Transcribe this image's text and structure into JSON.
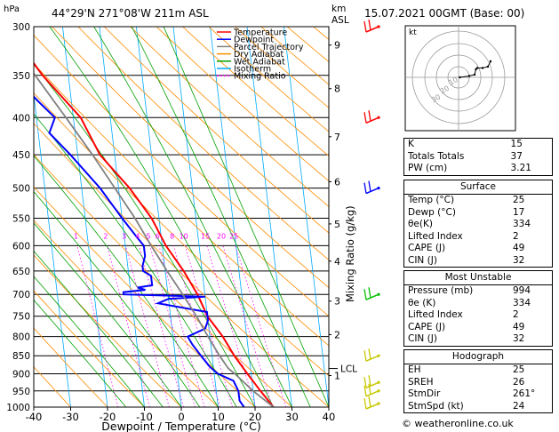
{
  "header": {
    "location": "44°29'N  271°08'W  211m  ASL",
    "datetime": "15.07.2021  00GMT  (Base: 00)"
  },
  "credit": "© weatheronline.co.uk",
  "chart_data": {
    "type": "line",
    "kind": "skew-T log-P thermodynamic diagram",
    "xlabel": "Dewpoint / Temperature (°C)",
    "ylabel_left": "hPa",
    "ylabel_right_top": "km ASL",
    "ylabel_right": "Mixing Ratio (g/kg)",
    "x_ticks": [
      -40,
      -30,
      -20,
      -10,
      0,
      10,
      20,
      30,
      40
    ],
    "xlim": [
      -40,
      40
    ],
    "p_ticks": [
      300,
      350,
      400,
      450,
      500,
      550,
      600,
      650,
      700,
      750,
      800,
      850,
      900,
      950,
      1000
    ],
    "ylim": [
      1000,
      300
    ],
    "y_scale": "log",
    "skew": "isotherms slanted to the right",
    "km_ticks": [
      {
        "label": "9",
        "p": 318
      },
      {
        "label": "8",
        "p": 365
      },
      {
        "label": "7",
        "p": 425
      },
      {
        "label": "6",
        "p": 490
      },
      {
        "label": "5",
        "p": 560
      },
      {
        "label": "4",
        "p": 630
      },
      {
        "label": "3",
        "p": 715
      },
      {
        "label": "2",
        "p": 795
      },
      {
        "label": "1",
        "p": 905
      }
    ],
    "lcl": {
      "label": "LCL",
      "p": 885
    },
    "mixing_ratio_labels": [
      "1",
      "2",
      "3",
      "4",
      "5",
      "6",
      "8",
      "10",
      "15",
      "20",
      "25"
    ],
    "mixing_ratio_values": [
      1,
      2,
      3,
      4,
      5,
      6,
      8,
      10,
      15,
      20,
      25
    ],
    "mixing_ratio_label_p": 590,
    "legend": [
      "Temperature",
      "Dewpoint",
      "Parcel Trajectory",
      "Dry Adiabat",
      "Wet Adiabat",
      "Isotherm",
      "Mixing Ratio"
    ],
    "legend_position": "top-left",
    "colors": {
      "temperature": "#ff0000",
      "dewpoint": "#0000ff",
      "parcel": "#808080",
      "dry_adiabat": "#ff8c00",
      "wet_adiabat": "#00a000",
      "isotherm": "#00aaff",
      "mixing_ratio": "#ff00ff",
      "wind_high": "#ff0000",
      "wind_mid": "#0000ff",
      "wind_low_mid": "#00c000",
      "wind_low": "#c8c800"
    },
    "isotherms": [
      -110,
      -100,
      -90,
      -80,
      -70,
      -60,
      -50,
      -40,
      -30,
      -20,
      -10,
      0,
      10,
      20,
      30,
      40
    ],
    "dry_adiabats_theta_c": [
      -30,
      -20,
      -10,
      0,
      10,
      20,
      30,
      40,
      50,
      60,
      70,
      80,
      90,
      100,
      110,
      120,
      130,
      140,
      150,
      160,
      170,
      180,
      190,
      200
    ],
    "wet_adiabats_c": [
      -15,
      -10,
      -5,
      0,
      5,
      10,
      15,
      20,
      25,
      30,
      35,
      40
    ],
    "series": [
      {
        "name": "Temperature",
        "p": [
          1000,
          950,
          900,
          850,
          800,
          750,
          700,
          650,
          600,
          550,
          500,
          450,
          400,
          350,
          300
        ],
        "t": [
          25,
          22,
          19,
          16,
          13.5,
          10,
          8,
          5,
          1,
          -2,
          -7,
          -14,
          -18,
          -27,
          -35
        ]
      },
      {
        "name": "Dewpoint",
        "p": [
          1000,
          980,
          950,
          920,
          900,
          880,
          850,
          820,
          800,
          780,
          760,
          740,
          720,
          710,
          705,
          700,
          695,
          690,
          685,
          680,
          660,
          650,
          640,
          620,
          600,
          580,
          550,
          500,
          450,
          420,
          400,
          380,
          350,
          300
        ],
        "t": [
          17,
          16,
          16,
          15,
          11,
          9,
          7,
          5,
          4,
          9,
          10,
          10,
          -3,
          0,
          10,
          -12,
          -12,
          -6,
          -8,
          -4,
          -4,
          -6,
          -6,
          -5,
          -5,
          -7,
          -10,
          -15,
          -22,
          -27,
          -25,
          -29,
          -35,
          -43
        ]
      },
      {
        "name": "Parcel Trajectory",
        "p": [
          1000,
          950,
          900,
          885,
          850,
          800,
          750,
          700,
          650,
          600,
          550,
          500,
          450,
          400,
          350,
          300
        ],
        "t": [
          25,
          20,
          15.6,
          14,
          12,
          9.5,
          7,
          4,
          0.5,
          -3,
          -6.5,
          -11,
          -16,
          -22,
          -29,
          -38
        ]
      }
    ],
    "wind_barbs": [
      {
        "p": 300,
        "color": "wind_high"
      },
      {
        "p": 400,
        "color": "wind_high"
      },
      {
        "p": 500,
        "color": "wind_mid"
      },
      {
        "p": 700,
        "color": "wind_low_mid"
      },
      {
        "p": 850,
        "color": "wind_low"
      },
      {
        "p": 925,
        "color": "wind_low"
      },
      {
        "p": 950,
        "color": "wind_low"
      },
      {
        "p": 1000,
        "color": "wind_low"
      }
    ],
    "hodograph": {
      "label": "kt",
      "ring_labels": [
        "10",
        "20",
        "30"
      ],
      "trace": [
        [
          1,
          0
        ],
        [
          8,
          1
        ],
        [
          12,
          2
        ],
        [
          13,
          6
        ],
        [
          14,
          7
        ],
        [
          18,
          7
        ],
        [
          22,
          8
        ],
        [
          24,
          12
        ]
      ]
    }
  },
  "indices": {
    "rows": [
      {
        "label": "K",
        "value": "15"
      },
      {
        "label": "Totals Totals",
        "value": "37"
      },
      {
        "label": "PW (cm)",
        "value": "3.21"
      }
    ]
  },
  "surface": {
    "title": "Surface",
    "rows": [
      {
        "label": "Temp (°C)",
        "value": "25"
      },
      {
        "label": "Dewp (°C)",
        "value": "17"
      },
      {
        "label": "θe(K)",
        "value": "334"
      },
      {
        "label": "Lifted Index",
        "value": "2"
      },
      {
        "label": "CAPE (J)",
        "value": "49"
      },
      {
        "label": "CIN (J)",
        "value": "32"
      }
    ]
  },
  "most_unstable": {
    "title": "Most Unstable",
    "rows": [
      {
        "label": "Pressure (mb)",
        "value": "994"
      },
      {
        "label": "θe (K)",
        "value": "334"
      },
      {
        "label": "Lifted Index",
        "value": "2"
      },
      {
        "label": "CAPE (J)",
        "value": "49"
      },
      {
        "label": "CIN (J)",
        "value": "32"
      }
    ]
  },
  "hodograph_table": {
    "title": "Hodograph",
    "rows": [
      {
        "label": "EH",
        "value": "25"
      },
      {
        "label": "SREH",
        "value": "26"
      },
      {
        "label": "StmDir",
        "value": "261°"
      },
      {
        "label": "StmSpd (kt)",
        "value": "24"
      }
    ]
  }
}
